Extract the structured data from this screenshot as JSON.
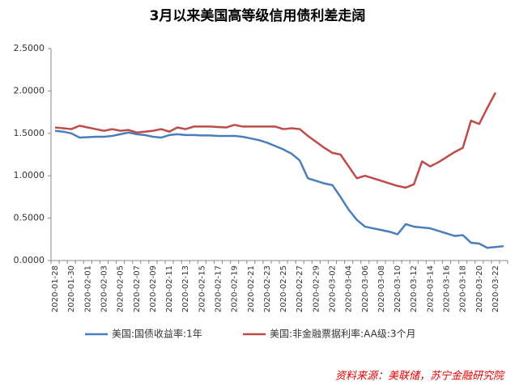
{
  "chart_data": {
    "type": "line",
    "title": "3月以来美国高等级信用债利差走阔",
    "source": "资料来源：美联储，苏宁金融研究院",
    "categories": [
      "2020-01-28",
      null,
      "2020-01-30",
      null,
      "2020-02-01",
      null,
      "2020-02-03",
      null,
      "2020-02-05",
      null,
      "2020-02-07",
      null,
      "2020-02-09",
      null,
      "2020-02-11",
      null,
      "2020-02-13",
      null,
      "2020-02-15",
      null,
      "2020-02-17",
      null,
      "2020-02-19",
      null,
      "2020-02-21",
      null,
      "2020-02-23",
      null,
      "2020-02-25",
      null,
      "2020-02-27",
      null,
      "2020-02-29",
      null,
      "2020-03-02",
      null,
      "2020-03-04",
      null,
      "2020-03-06",
      null,
      "2020-03-08",
      null,
      "2020-03-10",
      null,
      "2020-03-12",
      null,
      "2020-03-14",
      null,
      "2020-03-16",
      null,
      "2020-03-18",
      null,
      "2020-03-20",
      null,
      "2020-03-22",
      null
    ],
    "series": [
      {
        "name": "美国:国债收益率:1年",
        "color": "#4a7ebb",
        "values": [
          1.53,
          1.52,
          1.5,
          1.45,
          1.455,
          1.46,
          1.46,
          1.47,
          1.49,
          1.51,
          1.49,
          1.48,
          1.46,
          1.45,
          1.48,
          1.49,
          1.48,
          1.48,
          1.475,
          1.475,
          1.47,
          1.47,
          1.47,
          1.46,
          1.44,
          1.42,
          1.39,
          1.35,
          1.31,
          1.26,
          1.18,
          0.97,
          0.94,
          0.91,
          0.89,
          0.75,
          0.6,
          0.48,
          0.4,
          0.38,
          0.36,
          0.34,
          0.31,
          0.43,
          0.4,
          0.39,
          0.38,
          0.35,
          0.32,
          0.29,
          0.3,
          0.21,
          0.2,
          0.15,
          0.16,
          0.17
        ]
      },
      {
        "name": "美国:非金融票据利率:AA级:3个月",
        "color": "#be4b48",
        "values": [
          1.57,
          1.56,
          1.55,
          1.59,
          1.57,
          1.55,
          1.53,
          1.55,
          1.53,
          1.54,
          1.51,
          1.52,
          1.53,
          1.55,
          1.52,
          1.57,
          1.55,
          1.58,
          1.58,
          1.58,
          1.575,
          1.57,
          1.6,
          1.58,
          1.58,
          1.58,
          1.58,
          1.58,
          1.55,
          1.56,
          1.55,
          1.47,
          1.4,
          1.33,
          1.27,
          1.25,
          1.11,
          0.97,
          1.0,
          0.97,
          0.94,
          0.91,
          0.88,
          0.86,
          0.9,
          1.17,
          1.11,
          1.16,
          1.22,
          1.28,
          1.33,
          1.65,
          1.61,
          1.8,
          1.98,
          null
        ]
      }
    ],
    "ylim": [
      0,
      2.5
    ],
    "yticks": [
      {
        "value": 0,
        "label": "0.0000"
      },
      {
        "value": 0.5,
        "label": "0.5000"
      },
      {
        "value": 1,
        "label": "1.0000"
      },
      {
        "value": 1.5,
        "label": "1.5000"
      },
      {
        "value": 2,
        "label": "2.0000"
      },
      {
        "value": 2.5,
        "label": "2.5000"
      }
    ],
    "grid": false,
    "legend": "bottom"
  }
}
